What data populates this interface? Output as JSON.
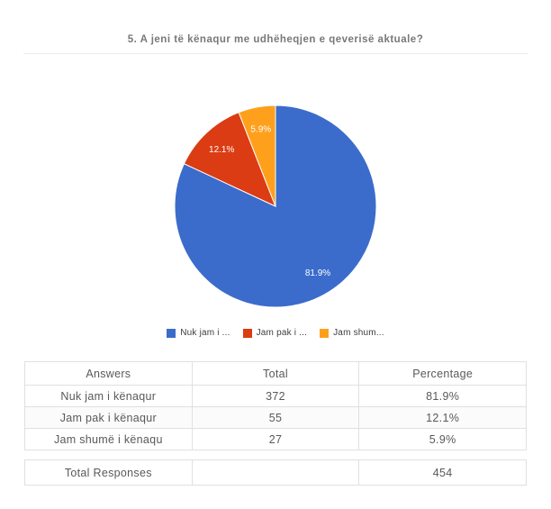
{
  "title": "5. A jeni të kënaqur me udhëheqjen e qeverisë aktuale?",
  "chart_data": {
    "type": "pie",
    "title": "5. A jeni të kënaqur me udhëheqjen e qeverisë aktuale?",
    "labels": [
      "Nuk jam i kënaqur",
      "Jam pak i kënaqur",
      "Jam shumë i kënaqu"
    ],
    "legend_labels": [
      "Nuk jam i ...",
      "Jam pak i ...",
      "Jam shum..."
    ],
    "values": [
      372,
      55,
      27
    ],
    "percentages": [
      "81.9%",
      "12.1%",
      "5.9%"
    ],
    "colors": [
      "#3b6ccb",
      "#db3c13",
      "#ffa01c"
    ],
    "legend_position": "bottom",
    "start_angle_deg": 0,
    "direction": "clockwise",
    "slice_label_color": "#ffffff"
  },
  "table": {
    "headers": [
      "Answers",
      "Total",
      "Percentage"
    ],
    "rows": [
      [
        "Nuk jam i kënaqur",
        "372",
        "81.9%"
      ],
      [
        "Jam pak i kënaqur",
        "55",
        "12.1%"
      ],
      [
        "Jam shumë i kënaqu",
        "27",
        "5.9%"
      ]
    ]
  },
  "total": {
    "label": "Total Responses",
    "value": "454"
  }
}
